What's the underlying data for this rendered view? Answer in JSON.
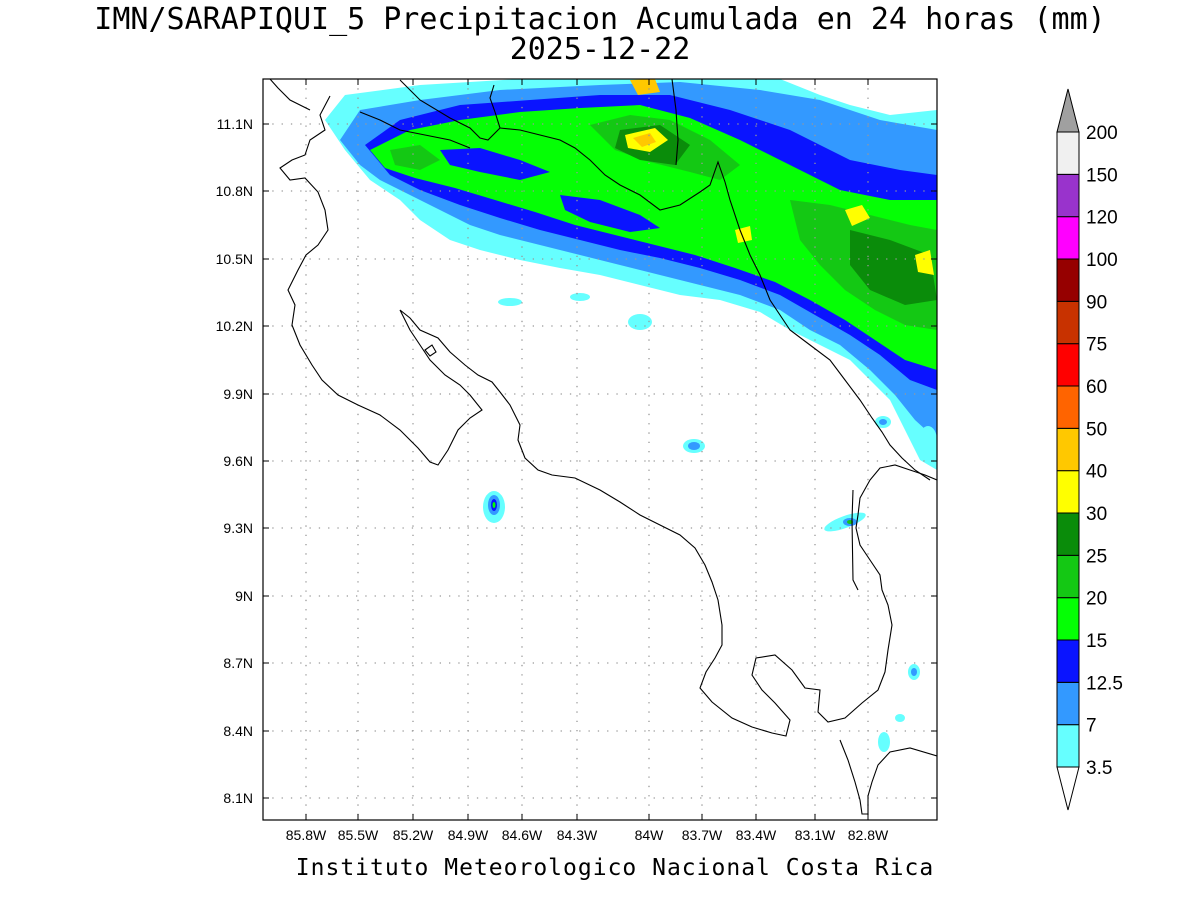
{
  "title": "IMN/SARAPIQUI_5 Precipitacion Acumulada en 24 horas (mm)",
  "date": "2025-12-22",
  "footer": "Instituto Meteorologico Nacional Costa Rica",
  "lat_labels": [
    "11.1N",
    "10.8N",
    "10.5N",
    "10.2N",
    "9.9N",
    "9.6N",
    "9.3N",
    "9N",
    "8.7N",
    "8.4N",
    "8.1N"
  ],
  "lon_labels": [
    "85.8W",
    "85.5W",
    "85.2W",
    "84.9W",
    "84.6W",
    "84.3W",
    "84W",
    "83.7W",
    "83.4W",
    "83.1W",
    "82.8W"
  ],
  "colorbar": {
    "levels": [
      "3.5",
      "7",
      "12.5",
      "15",
      "20",
      "25",
      "30",
      "40",
      "50",
      "60",
      "75",
      "90",
      "100",
      "120",
      "150",
      "200"
    ],
    "colors": [
      "#ffffff",
      "#66ffff",
      "#3399ff",
      "#0a14ff",
      "#05ff05",
      "#14c814",
      "#0a8c0a",
      "#ffff00",
      "#ffc800",
      "#ff6400",
      "#ff0000",
      "#c83200",
      "#960000",
      "#ff00ff",
      "#9933cc",
      "#f0f0f0",
      "#a0a0a0"
    ]
  }
}
